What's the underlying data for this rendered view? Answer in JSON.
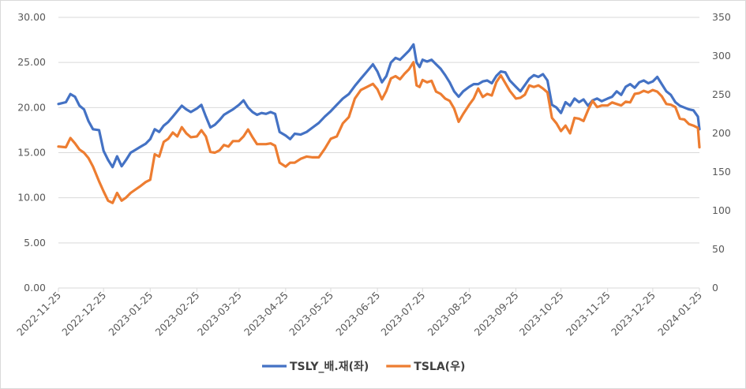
{
  "chart_data": {
    "type": "line",
    "title": "",
    "x": [
      "2022-11-25",
      "2022-12-25",
      "2023-01-25",
      "2023-02-25",
      "2023-03-25",
      "2023-04-25",
      "2023-05-25",
      "2023-06-25",
      "2023-07-25",
      "2023-08-25",
      "2023-09-25",
      "2023-10-25",
      "2023-11-25",
      "2023-12-25",
      "2024-01-25"
    ],
    "y_left": {
      "ylim": [
        0,
        30
      ],
      "ticks": [
        "0.00",
        "5.00",
        "10.00",
        "15.00",
        "20.00",
        "25.00",
        "30.00"
      ]
    },
    "y_right": {
      "ylim": [
        0,
        350
      ],
      "ticks": [
        "0",
        "50",
        "100",
        "150",
        "200",
        "250",
        "300",
        "350"
      ]
    },
    "grid": true,
    "legend_position": "bottom",
    "series": [
      {
        "name": "TSLY_배.재(좌)",
        "axis": "left",
        "color": "#4472C4",
        "points": [
          [
            "2022-11-25",
            20.4
          ],
          [
            "2022-11-30",
            20.6
          ],
          [
            "2022-12-03",
            21.5
          ],
          [
            "2022-12-06",
            21.2
          ],
          [
            "2022-12-09",
            20.2
          ],
          [
            "2022-12-12",
            19.8
          ],
          [
            "2022-12-15",
            18.5
          ],
          [
            "2022-12-18",
            17.6
          ],
          [
            "2022-12-22",
            17.5
          ],
          [
            "2022-12-25",
            15.2
          ],
          [
            "2022-12-28",
            14.2
          ],
          [
            "2022-12-31",
            13.4
          ],
          [
            "2023-01-03",
            14.6
          ],
          [
            "2023-01-06",
            13.5
          ],
          [
            "2023-01-09",
            14.2
          ],
          [
            "2023-01-12",
            15.0
          ],
          [
            "2023-01-15",
            15.3
          ],
          [
            "2023-01-18",
            15.6
          ],
          [
            "2023-01-22",
            16.0
          ],
          [
            "2023-01-25",
            16.5
          ],
          [
            "2023-01-28",
            17.6
          ],
          [
            "2023-01-31",
            17.3
          ],
          [
            "2023-02-03",
            18.0
          ],
          [
            "2023-02-06",
            18.4
          ],
          [
            "2023-02-09",
            19.0
          ],
          [
            "2023-02-12",
            19.6
          ],
          [
            "2023-02-15",
            20.2
          ],
          [
            "2023-02-18",
            19.8
          ],
          [
            "2023-02-21",
            19.5
          ],
          [
            "2023-02-25",
            19.9
          ],
          [
            "2023-02-28",
            20.3
          ],
          [
            "2023-03-03",
            19.0
          ],
          [
            "2023-03-06",
            17.8
          ],
          [
            "2023-03-09",
            18.1
          ],
          [
            "2023-03-12",
            18.6
          ],
          [
            "2023-03-15",
            19.2
          ],
          [
            "2023-03-18",
            19.5
          ],
          [
            "2023-03-21",
            19.8
          ],
          [
            "2023-03-25",
            20.3
          ],
          [
            "2023-03-28",
            20.8
          ],
          [
            "2023-03-31",
            20.0
          ],
          [
            "2023-04-03",
            19.5
          ],
          [
            "2023-04-06",
            19.2
          ],
          [
            "2023-04-09",
            19.4
          ],
          [
            "2023-04-12",
            19.3
          ],
          [
            "2023-04-15",
            19.5
          ],
          [
            "2023-04-18",
            19.3
          ],
          [
            "2023-04-21",
            17.3
          ],
          [
            "2023-04-25",
            16.9
          ],
          [
            "2023-04-28",
            16.5
          ],
          [
            "2023-05-01",
            17.1
          ],
          [
            "2023-05-05",
            17.0
          ],
          [
            "2023-05-09",
            17.3
          ],
          [
            "2023-05-13",
            17.8
          ],
          [
            "2023-05-17",
            18.3
          ],
          [
            "2023-05-21",
            19.0
          ],
          [
            "2023-05-25",
            19.6
          ],
          [
            "2023-05-29",
            20.3
          ],
          [
            "2023-06-02",
            21.0
          ],
          [
            "2023-06-06",
            21.5
          ],
          [
            "2023-06-10",
            22.4
          ],
          [
            "2023-06-14",
            23.2
          ],
          [
            "2023-06-18",
            24.0
          ],
          [
            "2023-06-22",
            24.8
          ],
          [
            "2023-06-25",
            24.0
          ],
          [
            "2023-06-28",
            22.8
          ],
          [
            "2023-07-01",
            23.5
          ],
          [
            "2023-07-04",
            25.0
          ],
          [
            "2023-07-07",
            25.5
          ],
          [
            "2023-07-10",
            25.3
          ],
          [
            "2023-07-13",
            25.8
          ],
          [
            "2023-07-16",
            26.3
          ],
          [
            "2023-07-19",
            27.0
          ],
          [
            "2023-07-21",
            25.0
          ],
          [
            "2023-07-23",
            24.5
          ],
          [
            "2023-07-25",
            25.3
          ],
          [
            "2023-07-28",
            25.1
          ],
          [
            "2023-07-31",
            25.3
          ],
          [
            "2023-08-03",
            24.8
          ],
          [
            "2023-08-06",
            24.3
          ],
          [
            "2023-08-09",
            23.6
          ],
          [
            "2023-08-12",
            22.8
          ],
          [
            "2023-08-15",
            21.8
          ],
          [
            "2023-08-18",
            21.2
          ],
          [
            "2023-08-21",
            21.8
          ],
          [
            "2023-08-25",
            22.3
          ],
          [
            "2023-08-28",
            22.6
          ],
          [
            "2023-08-31",
            22.6
          ],
          [
            "2023-09-03",
            22.9
          ],
          [
            "2023-09-06",
            23.0
          ],
          [
            "2023-09-09",
            22.7
          ],
          [
            "2023-09-12",
            23.5
          ],
          [
            "2023-09-15",
            24.0
          ],
          [
            "2023-09-18",
            23.9
          ],
          [
            "2023-09-21",
            23.0
          ],
          [
            "2023-09-25",
            22.3
          ],
          [
            "2023-09-28",
            21.8
          ],
          [
            "2023-10-01",
            22.5
          ],
          [
            "2023-10-04",
            23.2
          ],
          [
            "2023-10-07",
            23.6
          ],
          [
            "2023-10-10",
            23.4
          ],
          [
            "2023-10-13",
            23.7
          ],
          [
            "2023-10-16",
            23.0
          ],
          [
            "2023-10-19",
            20.3
          ],
          [
            "2023-10-22",
            20.0
          ],
          [
            "2023-10-25",
            19.4
          ],
          [
            "2023-10-28",
            20.6
          ],
          [
            "2023-10-31",
            20.2
          ],
          [
            "2023-11-03",
            21.0
          ],
          [
            "2023-11-06",
            20.6
          ],
          [
            "2023-11-09",
            20.9
          ],
          [
            "2023-11-12",
            20.2
          ],
          [
            "2023-11-15",
            20.8
          ],
          [
            "2023-11-18",
            21.0
          ],
          [
            "2023-11-21",
            20.7
          ],
          [
            "2023-11-25",
            21.0
          ],
          [
            "2023-11-28",
            21.2
          ],
          [
            "2023-12-01",
            21.8
          ],
          [
            "2023-12-04",
            21.4
          ],
          [
            "2023-12-07",
            22.3
          ],
          [
            "2023-12-10",
            22.6
          ],
          [
            "2023-12-13",
            22.2
          ],
          [
            "2023-12-16",
            22.8
          ],
          [
            "2023-12-19",
            23.0
          ],
          [
            "2023-12-22",
            22.7
          ],
          [
            "2023-12-25",
            22.9
          ],
          [
            "2023-12-28",
            23.4
          ],
          [
            "2023-12-31",
            22.6
          ],
          [
            "2024-01-03",
            21.8
          ],
          [
            "2024-01-06",
            21.4
          ],
          [
            "2024-01-09",
            20.6
          ],
          [
            "2024-01-12",
            20.2
          ],
          [
            "2024-01-15",
            20.0
          ],
          [
            "2024-01-18",
            19.8
          ],
          [
            "2024-01-21",
            19.7
          ],
          [
            "2024-01-24",
            19.0
          ],
          [
            "2024-01-25",
            17.6
          ]
        ]
      },
      {
        "name": "TSLA(우)",
        "axis": "right",
        "color": "#ED7D31",
        "points": [
          [
            "2022-11-25",
            183
          ],
          [
            "2022-11-30",
            182
          ],
          [
            "2022-12-03",
            194
          ],
          [
            "2022-12-06",
            187
          ],
          [
            "2022-12-09",
            179
          ],
          [
            "2022-12-12",
            175
          ],
          [
            "2022-12-15",
            168
          ],
          [
            "2022-12-18",
            157
          ],
          [
            "2022-12-22",
            138
          ],
          [
            "2022-12-25",
            125
          ],
          [
            "2022-12-28",
            113
          ],
          [
            "2022-12-31",
            110
          ],
          [
            "2023-01-03",
            123
          ],
          [
            "2023-01-06",
            113
          ],
          [
            "2023-01-09",
            117
          ],
          [
            "2023-01-12",
            123
          ],
          [
            "2023-01-15",
            127
          ],
          [
            "2023-01-18",
            131
          ],
          [
            "2023-01-22",
            137
          ],
          [
            "2023-01-25",
            140
          ],
          [
            "2023-01-28",
            173
          ],
          [
            "2023-01-31",
            170
          ],
          [
            "2023-02-03",
            189
          ],
          [
            "2023-02-06",
            193
          ],
          [
            "2023-02-09",
            201
          ],
          [
            "2023-02-12",
            196
          ],
          [
            "2023-02-15",
            208
          ],
          [
            "2023-02-18",
            200
          ],
          [
            "2023-02-21",
            195
          ],
          [
            "2023-02-25",
            196
          ],
          [
            "2023-02-28",
            204
          ],
          [
            "2023-03-03",
            196
          ],
          [
            "2023-03-06",
            176
          ],
          [
            "2023-03-09",
            175
          ],
          [
            "2023-03-12",
            178
          ],
          [
            "2023-03-15",
            185
          ],
          [
            "2023-03-18",
            183
          ],
          [
            "2023-03-21",
            190
          ],
          [
            "2023-03-25",
            190
          ],
          [
            "2023-03-28",
            196
          ],
          [
            "2023-03-31",
            205
          ],
          [
            "2023-04-03",
            195
          ],
          [
            "2023-04-06",
            186
          ],
          [
            "2023-04-09",
            186
          ],
          [
            "2023-04-12",
            186
          ],
          [
            "2023-04-15",
            187
          ],
          [
            "2023-04-18",
            184
          ],
          [
            "2023-04-21",
            162
          ],
          [
            "2023-04-25",
            157
          ],
          [
            "2023-04-28",
            162
          ],
          [
            "2023-05-01",
            162
          ],
          [
            "2023-05-05",
            167
          ],
          [
            "2023-05-09",
            170
          ],
          [
            "2023-05-13",
            169
          ],
          [
            "2023-05-17",
            169
          ],
          [
            "2023-05-21",
            180
          ],
          [
            "2023-05-25",
            193
          ],
          [
            "2023-05-29",
            196
          ],
          [
            "2023-06-02",
            213
          ],
          [
            "2023-06-06",
            221
          ],
          [
            "2023-06-10",
            245
          ],
          [
            "2023-06-14",
            256
          ],
          [
            "2023-06-18",
            260
          ],
          [
            "2023-06-22",
            264
          ],
          [
            "2023-06-25",
            257
          ],
          [
            "2023-06-28",
            244
          ],
          [
            "2023-07-01",
            255
          ],
          [
            "2023-07-04",
            271
          ],
          [
            "2023-07-07",
            274
          ],
          [
            "2023-07-10",
            270
          ],
          [
            "2023-07-13",
            277
          ],
          [
            "2023-07-16",
            283
          ],
          [
            "2023-07-19",
            292
          ],
          [
            "2023-07-21",
            262
          ],
          [
            "2023-07-23",
            260
          ],
          [
            "2023-07-25",
            269
          ],
          [
            "2023-07-28",
            266
          ],
          [
            "2023-07-31",
            268
          ],
          [
            "2023-08-03",
            254
          ],
          [
            "2023-08-06",
            251
          ],
          [
            "2023-08-09",
            245
          ],
          [
            "2023-08-12",
            242
          ],
          [
            "2023-08-15",
            232
          ],
          [
            "2023-08-18",
            215
          ],
          [
            "2023-08-21",
            225
          ],
          [
            "2023-08-25",
            237
          ],
          [
            "2023-08-28",
            245
          ],
          [
            "2023-08-31",
            258
          ],
          [
            "2023-09-03",
            247
          ],
          [
            "2023-09-06",
            251
          ],
          [
            "2023-09-09",
            249
          ],
          [
            "2023-09-12",
            266
          ],
          [
            "2023-09-15",
            275
          ],
          [
            "2023-09-18",
            265
          ],
          [
            "2023-09-21",
            255
          ],
          [
            "2023-09-25",
            245
          ],
          [
            "2023-09-28",
            246
          ],
          [
            "2023-10-01",
            250
          ],
          [
            "2023-10-04",
            262
          ],
          [
            "2023-10-07",
            260
          ],
          [
            "2023-10-10",
            262
          ],
          [
            "2023-10-13",
            258
          ],
          [
            "2023-10-16",
            253
          ],
          [
            "2023-10-19",
            220
          ],
          [
            "2023-10-22",
            213
          ],
          [
            "2023-10-25",
            203
          ],
          [
            "2023-10-28",
            210
          ],
          [
            "2023-10-31",
            200
          ],
          [
            "2023-11-03",
            220
          ],
          [
            "2023-11-06",
            219
          ],
          [
            "2023-11-09",
            216
          ],
          [
            "2023-11-12",
            230
          ],
          [
            "2023-11-15",
            242
          ],
          [
            "2023-11-18",
            234
          ],
          [
            "2023-11-21",
            236
          ],
          [
            "2023-11-25",
            236
          ],
          [
            "2023-11-28",
            240
          ],
          [
            "2023-12-01",
            238
          ],
          [
            "2023-12-04",
            236
          ],
          [
            "2023-12-07",
            241
          ],
          [
            "2023-12-10",
            240
          ],
          [
            "2023-12-13",
            251
          ],
          [
            "2023-12-16",
            252
          ],
          [
            "2023-12-19",
            255
          ],
          [
            "2023-12-22",
            253
          ],
          [
            "2023-12-25",
            256
          ],
          [
            "2023-12-28",
            254
          ],
          [
            "2023-12-31",
            248
          ],
          [
            "2024-01-03",
            238
          ],
          [
            "2024-01-06",
            237
          ],
          [
            "2024-01-09",
            234
          ],
          [
            "2024-01-12",
            219
          ],
          [
            "2024-01-15",
            218
          ],
          [
            "2024-01-18",
            212
          ],
          [
            "2024-01-21",
            210
          ],
          [
            "2024-01-24",
            207
          ],
          [
            "2024-01-25",
            182
          ]
        ]
      }
    ]
  }
}
